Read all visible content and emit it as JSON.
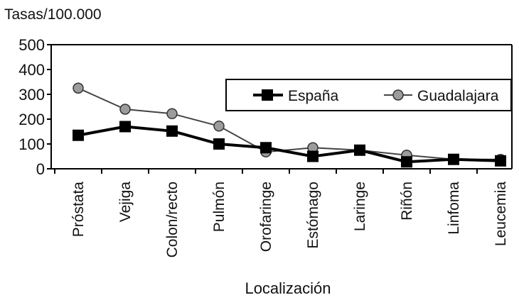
{
  "chart_data": {
    "type": "line",
    "title": "",
    "ylabel": "Tasas/100.000",
    "xlabel": "Localización",
    "ylim": [
      0,
      500
    ],
    "yticks": [
      0,
      100,
      200,
      300,
      400,
      500
    ],
    "categories": [
      "Próstata",
      "Vejiga",
      "Colon/recto",
      "Pulmón",
      "Orofaringe",
      "Estómago",
      "Laringe",
      "Riñón",
      "Linfoma",
      "Leucemia"
    ],
    "series": [
      {
        "name": "España",
        "values": [
          135,
          170,
          152,
          100,
          85,
          50,
          75,
          28,
          38,
          32
        ],
        "color": "#000000",
        "marker": "square"
      },
      {
        "name": "Guadalajara",
        "values": [
          325,
          240,
          222,
          172,
          68,
          85,
          75,
          55,
          38,
          38
        ],
        "color": "#555555",
        "marker": "circle-gray"
      }
    ],
    "grid": false,
    "legend_placement": "upper-right"
  }
}
